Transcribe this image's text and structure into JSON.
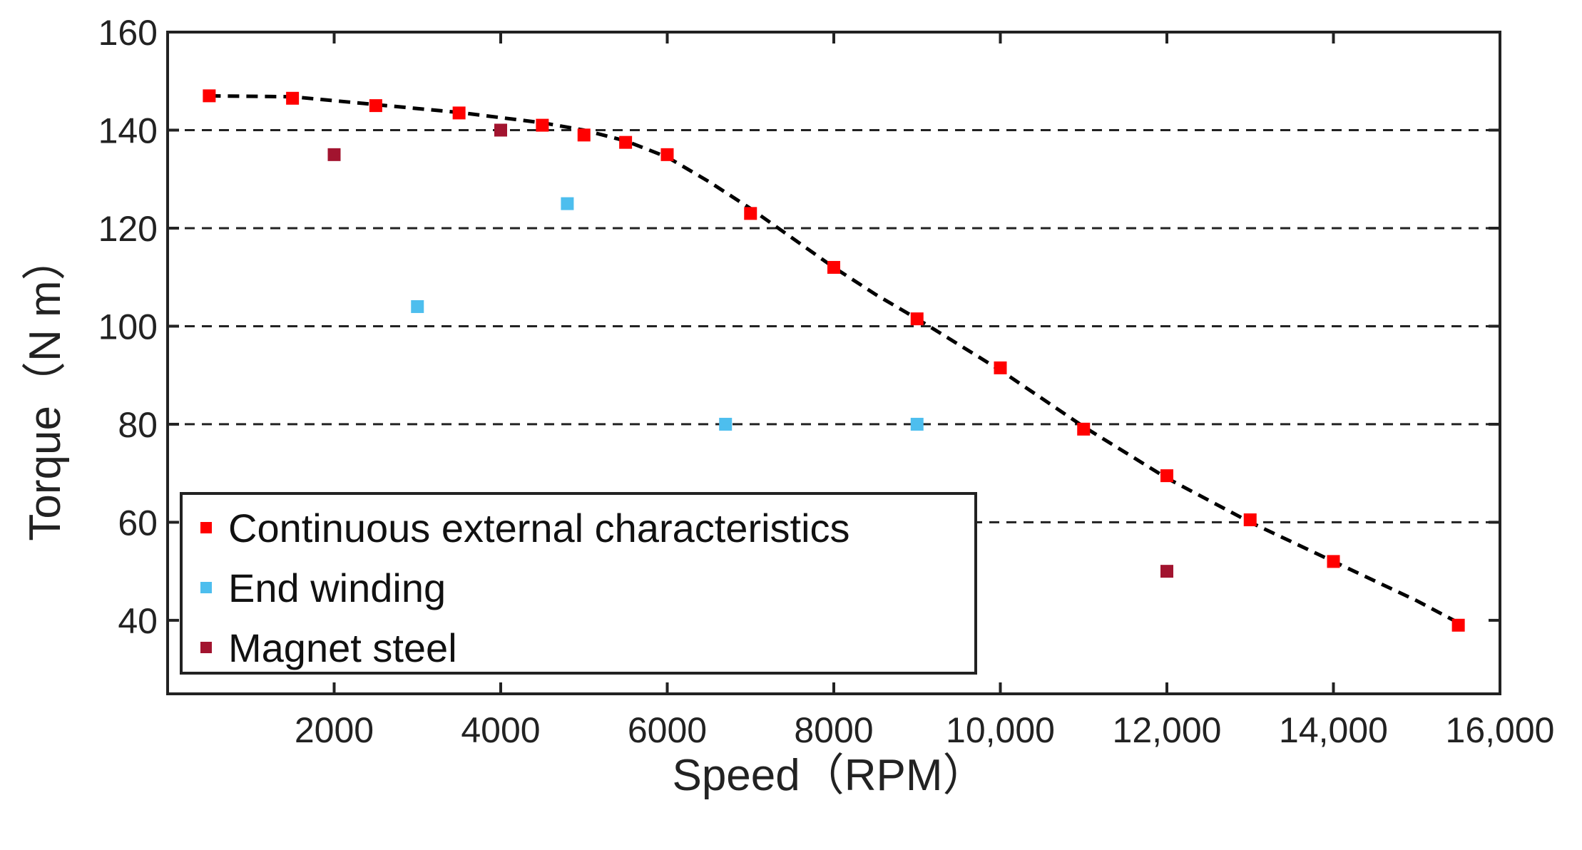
{
  "chart_data": {
    "type": "scatter",
    "title": "",
    "xlabel": "Speed（RPM）",
    "ylabel": "Torque（N m）",
    "xlim": [
      0,
      16000
    ],
    "ylim": [
      25,
      160
    ],
    "x_ticks": [
      2000,
      4000,
      6000,
      8000,
      10000,
      12000,
      14000,
      16000
    ],
    "x_tick_labels": [
      "2000",
      "4000",
      "6000",
      "8000",
      "10,000",
      "12,000",
      "14,000",
      "16,000"
    ],
    "y_ticks": [
      40,
      60,
      80,
      100,
      120,
      140,
      160
    ],
    "y_tick_labels": [
      "40",
      "60",
      "80",
      "100",
      "120",
      "140",
      "160"
    ],
    "y_grid": [
      60,
      80,
      100,
      120,
      140
    ],
    "grid": "horizontal dashed",
    "legend_position": "bottom-left",
    "series": [
      {
        "name": "Continuous external characteristics",
        "color": "#ff0000",
        "marker": "square",
        "points": [
          [
            500,
            147
          ],
          [
            1500,
            146.5
          ],
          [
            2500,
            145
          ],
          [
            3500,
            143.5
          ],
          [
            4500,
            141
          ],
          [
            5000,
            139
          ],
          [
            5500,
            137.5
          ],
          [
            6000,
            135
          ],
          [
            7000,
            123
          ],
          [
            8000,
            112
          ],
          [
            9000,
            101.5
          ],
          [
            10000,
            91.5
          ],
          [
            11000,
            79
          ],
          [
            12000,
            69.5
          ],
          [
            13000,
            60.5
          ],
          [
            14000,
            52
          ],
          [
            15500,
            39
          ]
        ]
      },
      {
        "name": "End winding",
        "color": "#4dbeee",
        "marker": "square",
        "points": [
          [
            3000,
            104
          ],
          [
            4800,
            125
          ],
          [
            6700,
            80
          ],
          [
            9000,
            80
          ]
        ]
      },
      {
        "name": "Magnet steel",
        "color": "#a2142f",
        "marker": "square",
        "points": [
          [
            2000,
            135
          ],
          [
            4000,
            140
          ],
          [
            12000,
            50
          ]
        ]
      }
    ],
    "fit_line": {
      "style": "dashed",
      "color": "#000000",
      "points": [
        [
          500,
          147
        ],
        [
          1500,
          146.8
        ],
        [
          2500,
          145.2
        ],
        [
          3500,
          143.6
        ],
        [
          4500,
          141.5
        ],
        [
          5000,
          140
        ],
        [
          5500,
          137.8
        ],
        [
          6000,
          134.5
        ],
        [
          6500,
          129.5
        ],
        [
          7000,
          124
        ],
        [
          7500,
          118
        ],
        [
          8000,
          112
        ],
        [
          8500,
          106.5
        ],
        [
          9000,
          101.5
        ],
        [
          10000,
          91
        ],
        [
          11000,
          79.5
        ],
        [
          12000,
          69
        ],
        [
          13000,
          60
        ],
        [
          14000,
          52
        ],
        [
          15000,
          44
        ],
        [
          15500,
          39.5
        ]
      ]
    }
  }
}
